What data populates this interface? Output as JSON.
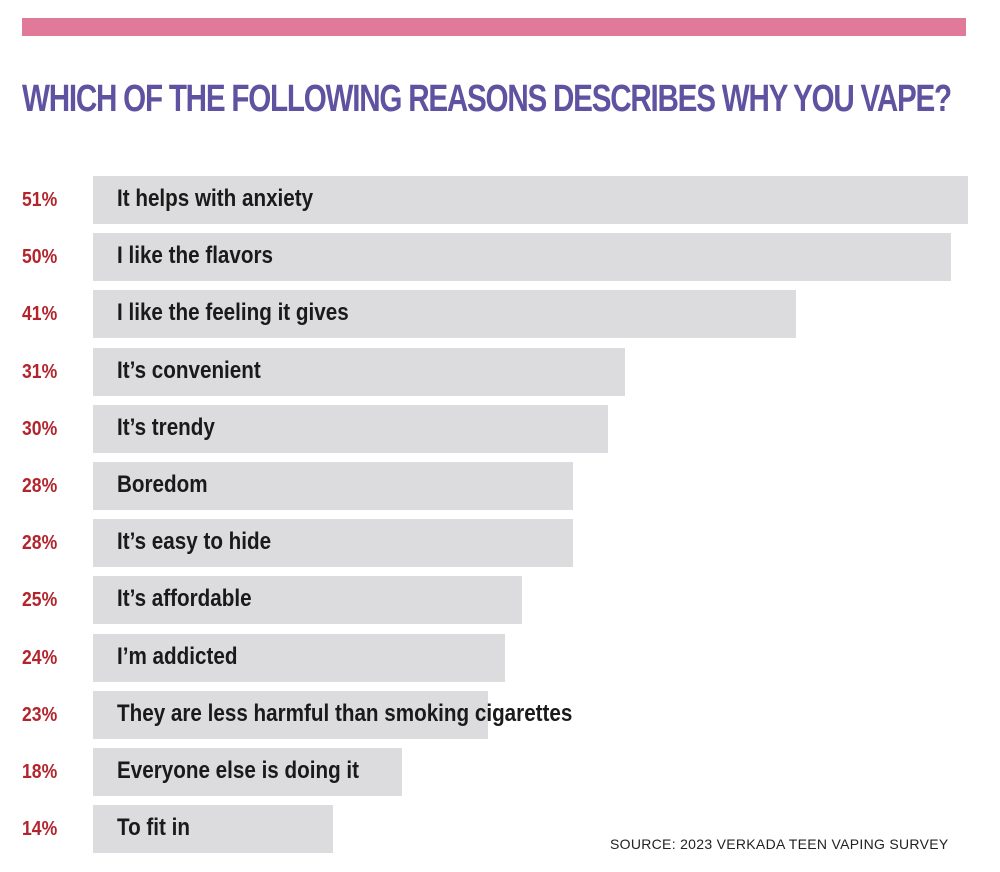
{
  "header": {
    "accent_color": "#e07a98",
    "title": "WHICH OF THE FOLLOWING REASONS DESCRIBES WHY YOU VAPE?"
  },
  "source": "SOURCE: 2023 VERKADA TEEN VAPING SURVEY",
  "chart_data": {
    "type": "bar",
    "orientation": "horizontal",
    "title": "WHICH OF THE FOLLOWING REASONS DESCRIBES WHY YOU VAPE?",
    "xlabel": "",
    "ylabel": "",
    "unit": "%",
    "xlim": [
      0,
      51
    ],
    "grid": false,
    "legend": "none",
    "bar_color": "#dcdcde",
    "value_color": "#b3252d",
    "title_color": "#5f52a0",
    "categories": [
      "It helps with anxiety",
      "I like the flavors",
      "I like the feeling it gives",
      "It’s convenient",
      "It’s trendy",
      "Boredom",
      "It’s easy to hide",
      "It’s affordable",
      "I’m addicted",
      "They are less harmful than smoking cigarettes",
      "Everyone else is doing it",
      "To fit in"
    ],
    "values": [
      51,
      50,
      41,
      31,
      30,
      28,
      28,
      25,
      24,
      23,
      18,
      14
    ],
    "value_labels": [
      "51%",
      "50%",
      "41%",
      "31%",
      "30%",
      "28%",
      "28%",
      "25%",
      "24%",
      "23%",
      "18%",
      "14%"
    ],
    "source": "SOURCE: 2023 VERKADA TEEN VAPING SURVEY"
  }
}
